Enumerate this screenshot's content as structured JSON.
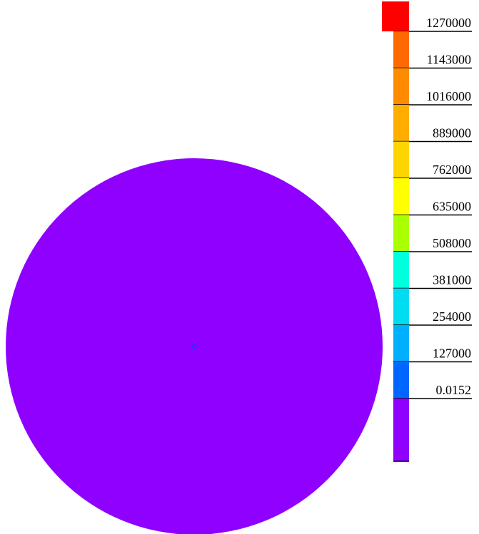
{
  "chart_data": {
    "type": "heatmap",
    "title": "",
    "colorbar": {
      "placement": "right",
      "levels": [
        {
          "color": "#ff0000",
          "label": "1270000"
        },
        {
          "color": "#ff6a00",
          "label": "1143000"
        },
        {
          "color": "#ff8c00",
          "label": "1016000"
        },
        {
          "color": "#ffae00",
          "label": "889000"
        },
        {
          "color": "#ffd500",
          "label": "762000"
        },
        {
          "color": "#ffff00",
          "label": "635000"
        },
        {
          "color": "#aaff00",
          "label": "508000"
        },
        {
          "color": "#00ffdd",
          "label": "381000"
        },
        {
          "color": "#00ddf0",
          "label": "254000"
        },
        {
          "color": "#00b0ff",
          "label": "127000"
        },
        {
          "color": "#0066ff",
          "label": "0.0152"
        },
        {
          "color": "#8f00ff",
          "label": ""
        }
      ]
    },
    "field": {
      "shape": "disc",
      "fill_color": "#8f00ff",
      "center_marker_color": "#0040ff"
    }
  }
}
